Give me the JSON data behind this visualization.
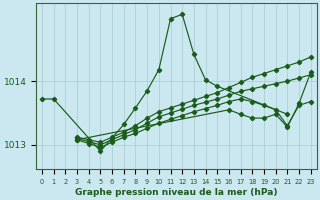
{
  "background_color": "#cbe8f0",
  "line_color": "#1a5c1a",
  "yticks": [
    1013,
    1014
  ],
  "ylim": [
    1012.62,
    1015.22
  ],
  "xlim": [
    -0.5,
    23.5
  ],
  "xtick_labels": [
    "0",
    "1",
    "2",
    "3",
    "4",
    "5",
    "6",
    "7",
    "8",
    "9",
    "10",
    "11",
    "12",
    "13",
    "14",
    "15",
    "16",
    "17",
    "18",
    "19",
    "20",
    "21",
    "22",
    "23"
  ],
  "xlabel": "Graphe pression niveau de la mer (hPa)",
  "series1_x": [
    0,
    1,
    5,
    7,
    8,
    9,
    10,
    11,
    12,
    13,
    14,
    15,
    21
  ],
  "series1_y": [
    1013.72,
    1013.72,
    1012.9,
    1013.32,
    1013.58,
    1013.85,
    1014.18,
    1014.98,
    1015.05,
    1014.42,
    1014.02,
    1013.92,
    1013.48
  ],
  "series2_x": [
    3,
    4,
    5,
    6,
    7,
    8,
    9,
    10,
    11,
    12,
    13,
    14,
    15,
    16,
    17,
    18,
    19,
    20,
    21,
    22,
    23
  ],
  "series2_y": [
    1013.12,
    1013.08,
    1013.04,
    1013.12,
    1013.2,
    1013.3,
    1013.42,
    1013.52,
    1013.58,
    1013.64,
    1013.7,
    1013.76,
    1013.82,
    1013.9,
    1013.98,
    1014.06,
    1014.12,
    1014.18,
    1014.24,
    1014.3,
    1014.38
  ],
  "series3_x": [
    3,
    4,
    5,
    6,
    7,
    8,
    9,
    10,
    11,
    12,
    13,
    14,
    15,
    16,
    17,
    18,
    19,
    20,
    21,
    22,
    23
  ],
  "series3_y": [
    1013.1,
    1013.05,
    1013.0,
    1013.08,
    1013.16,
    1013.24,
    1013.34,
    1013.44,
    1013.5,
    1013.56,
    1013.62,
    1013.67,
    1013.72,
    1013.78,
    1013.84,
    1013.88,
    1013.92,
    1013.96,
    1014.0,
    1014.05,
    1014.1
  ],
  "series4_x": [
    3,
    4,
    5,
    6,
    7,
    8,
    9,
    10,
    11,
    12,
    13,
    14,
    15,
    16,
    17,
    18,
    19,
    20,
    21,
    22,
    23
  ],
  "series4_y": [
    1013.08,
    1013.02,
    1012.96,
    1013.04,
    1013.12,
    1013.18,
    1013.26,
    1013.34,
    1013.4,
    1013.46,
    1013.52,
    1013.57,
    1013.62,
    1013.68,
    1013.72,
    1013.68,
    1013.62,
    1013.55,
    1013.3,
    1013.62,
    1013.68
  ],
  "series5_x": [
    3,
    16,
    17,
    18,
    19,
    20,
    21,
    22,
    23
  ],
  "series5_y": [
    1013.08,
    1013.55,
    1013.48,
    1013.42,
    1013.42,
    1013.48,
    1013.28,
    1013.65,
    1014.14
  ]
}
